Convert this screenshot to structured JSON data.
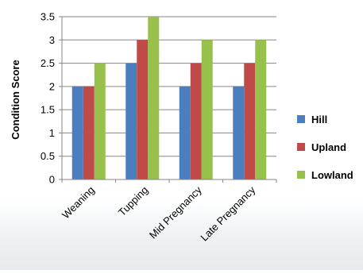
{
  "chart_data": {
    "type": "bar",
    "title": "",
    "xlabel": "",
    "ylabel": "Condition Score",
    "ylim": [
      0,
      3.5
    ],
    "yticks": [
      0,
      0.5,
      1,
      1.5,
      2,
      2.5,
      3,
      3.5
    ],
    "ytick_labels": [
      "0",
      "0.5",
      "1",
      "1.5",
      "2",
      "2.5",
      "3",
      "3.5"
    ],
    "grid": true,
    "legend_position": "right",
    "categories": [
      "Weaning",
      "Tupping",
      "Mid Pregnancy",
      "Late Pregnancy"
    ],
    "series": [
      {
        "name": "Hill",
        "color": "#4a7ebf",
        "values": [
          2,
          2.5,
          2,
          2
        ]
      },
      {
        "name": "Upland",
        "color": "#be4b48",
        "values": [
          2,
          3,
          2.5,
          2.5
        ]
      },
      {
        "name": "Lowland",
        "color": "#98c04c",
        "values": [
          2.5,
          3.5,
          3,
          3
        ]
      }
    ]
  }
}
